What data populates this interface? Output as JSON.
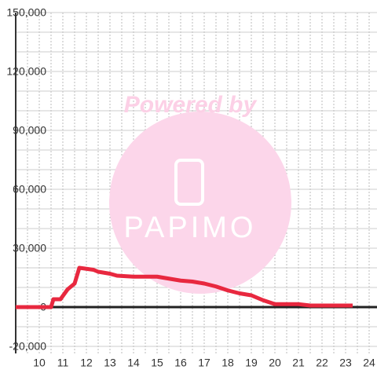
{
  "chart_data": {
    "type": "line",
    "watermark": {
      "title": "Powered by",
      "logo": "PAPIMO"
    },
    "xlim": [
      9,
      24.3
    ],
    "xticks": [
      10,
      11,
      12,
      13,
      14,
      15,
      16,
      17,
      18,
      19,
      20,
      21,
      22,
      23,
      24
    ],
    "xgrid": [
      9.5,
      10,
      10.5,
      11,
      11.5,
      12,
      12.5,
      13,
      13.5,
      14,
      14.5,
      15,
      15.5,
      16,
      16.5,
      17,
      17.5,
      18,
      18.5,
      19,
      19.5,
      20,
      20.5,
      21,
      21.5,
      22,
      22.5,
      23,
      23.5,
      24
    ],
    "ylim": [
      -20000,
      150000
    ],
    "yticks": [
      {
        "value": -20000,
        "label": "-20,000"
      },
      0,
      {
        "value": 30000,
        "label": "30,000"
      },
      {
        "value": 60000,
        "label": "60,000"
      },
      {
        "value": 90000,
        "label": "90,000"
      },
      {
        "value": 120000,
        "label": "120,000"
      },
      {
        "value": 150000,
        "label": "150,000"
      }
    ],
    "ygrid": [
      -10000,
      10000,
      20000,
      40000,
      50000,
      70000,
      80000,
      100000,
      110000,
      130000,
      140000
    ],
    "series": [
      {
        "color": "#e8283f",
        "x": [
          9,
          10.3,
          10.5,
          10.6,
          10.9,
          11.2,
          11.5,
          11.7,
          12.3,
          12.5,
          13,
          13.3,
          14,
          15,
          15.5,
          16,
          16.5,
          17,
          17.5,
          18,
          18.5,
          19,
          19.5,
          20,
          20.5,
          21,
          21.5,
          22,
          23.3
        ],
        "values": [
          0,
          0,
          0,
          4000,
          4000,
          9000,
          12000,
          20000,
          19000,
          18000,
          17000,
          16000,
          15500,
          15500,
          14500,
          13500,
          13000,
          12000,
          10500,
          8500,
          7000,
          6000,
          3500,
          1500,
          1500,
          1500,
          800,
          800,
          800
        ]
      }
    ]
  }
}
